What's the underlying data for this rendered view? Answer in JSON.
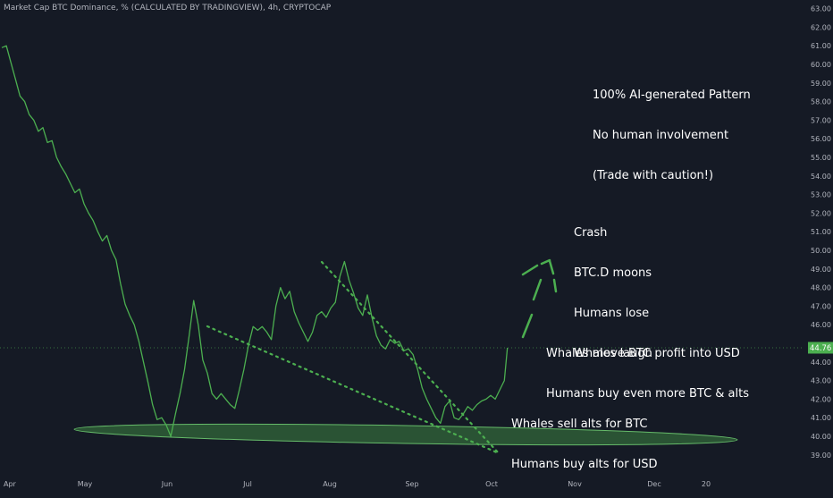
{
  "chart_data": {
    "type": "line",
    "title": "Market Cap BTC Dominance, % (CALCULATED BY TRADINGVIEW), 4h, CRYPTOCAP",
    "ylim": [
      38.5,
      63.2
    ],
    "y_ticks": [
      "39.00",
      "40.00",
      "41.00",
      "42.00",
      "43.00",
      "44.00",
      "45.00",
      "46.00",
      "47.00",
      "48.00",
      "49.00",
      "50.00",
      "51.00",
      "52.00",
      "53.00",
      "54.00",
      "55.00",
      "56.00",
      "57.00",
      "58.00",
      "59.00",
      "60.00",
      "61.00",
      "62.00",
      "63.00"
    ],
    "x_labels": [
      "Apr",
      "May",
      "Jun",
      "Jul",
      "Aug",
      "Sep",
      "Oct",
      "Nov",
      "Dec",
      "20"
    ],
    "last_value_label": "44.76",
    "last_value": 44.76,
    "series": [
      {
        "color": "#4caf50",
        "points": [
          [
            0,
            60.9
          ],
          [
            3,
            61.0
          ],
          [
            6,
            60.1
          ],
          [
            9,
            59.2
          ],
          [
            12,
            58.3
          ],
          [
            15,
            58.0
          ],
          [
            18,
            57.3
          ],
          [
            21,
            57.0
          ],
          [
            24,
            56.4
          ],
          [
            27,
            56.6
          ],
          [
            30,
            55.8
          ],
          [
            33,
            55.9
          ],
          [
            36,
            55.0
          ],
          [
            39,
            54.5
          ],
          [
            42,
            54.1
          ],
          [
            45,
            53.6
          ],
          [
            48,
            53.1
          ],
          [
            51,
            53.3
          ],
          [
            54,
            52.5
          ],
          [
            57,
            52.0
          ],
          [
            60,
            51.6
          ],
          [
            63,
            51.0
          ],
          [
            66,
            50.5
          ],
          [
            69,
            50.8
          ],
          [
            72,
            50.0
          ],
          [
            75,
            49.5
          ],
          [
            78,
            48.2
          ],
          [
            81,
            47.1
          ],
          [
            84,
            46.5
          ],
          [
            87,
            46.0
          ],
          [
            90,
            45.1
          ],
          [
            93,
            44.0
          ],
          [
            96,
            42.9
          ],
          [
            99,
            41.7
          ],
          [
            102,
            40.9
          ],
          [
            105,
            41.0
          ],
          [
            108,
            40.6
          ],
          [
            111,
            40.0
          ],
          [
            114,
            41.2
          ],
          [
            117,
            42.3
          ],
          [
            120,
            43.6
          ],
          [
            123,
            45.4
          ],
          [
            126,
            47.3
          ],
          [
            129,
            46.0
          ],
          [
            132,
            44.1
          ],
          [
            135,
            43.4
          ],
          [
            138,
            42.3
          ],
          [
            141,
            42.0
          ],
          [
            144,
            42.3
          ],
          [
            147,
            42.0
          ],
          [
            150,
            41.7
          ],
          [
            153,
            41.5
          ],
          [
            156,
            42.5
          ],
          [
            159,
            43.6
          ],
          [
            162,
            44.9
          ],
          [
            165,
            45.9
          ],
          [
            168,
            45.7
          ],
          [
            171,
            45.9
          ],
          [
            174,
            45.6
          ],
          [
            177,
            45.2
          ],
          [
            180,
            47.0
          ],
          [
            183,
            48.0
          ],
          [
            186,
            47.4
          ],
          [
            189,
            47.8
          ],
          [
            192,
            46.7
          ],
          [
            195,
            46.1
          ],
          [
            198,
            45.6
          ],
          [
            201,
            45.1
          ],
          [
            204,
            45.6
          ],
          [
            207,
            46.5
          ],
          [
            210,
            46.7
          ],
          [
            213,
            46.4
          ],
          [
            216,
            46.9
          ],
          [
            219,
            47.2
          ],
          [
            222,
            48.6
          ],
          [
            225,
            49.4
          ],
          [
            228,
            48.4
          ],
          [
            231,
            47.7
          ],
          [
            234,
            46.9
          ],
          [
            237,
            46.5
          ],
          [
            240,
            47.6
          ],
          [
            243,
            46.4
          ],
          [
            246,
            45.4
          ],
          [
            249,
            44.9
          ],
          [
            252,
            44.7
          ],
          [
            255,
            45.2
          ],
          [
            258,
            45.0
          ],
          [
            261,
            45.1
          ],
          [
            264,
            44.6
          ],
          [
            267,
            44.7
          ],
          [
            270,
            44.4
          ],
          [
            273,
            43.6
          ],
          [
            276,
            42.6
          ],
          [
            279,
            42.0
          ],
          [
            282,
            41.5
          ],
          [
            285,
            41.0
          ],
          [
            288,
            40.7
          ],
          [
            291,
            41.6
          ],
          [
            294,
            41.9
          ],
          [
            297,
            41.0
          ],
          [
            300,
            40.9
          ],
          [
            303,
            41.2
          ],
          [
            306,
            41.6
          ],
          [
            309,
            41.4
          ],
          [
            312,
            41.7
          ],
          [
            315,
            41.9
          ],
          [
            318,
            42.0
          ],
          [
            321,
            42.2
          ],
          [
            324,
            42.0
          ],
          [
            327,
            42.5
          ],
          [
            330,
            43.0
          ],
          [
            332,
            44.76
          ]
        ]
      }
    ],
    "annotations": {
      "title_note": [
        "100% AI-generated Pattern",
        "No human involvement",
        "(Trade with caution!)"
      ],
      "crash_note": [
        "Crash",
        "BTC.D moons",
        "Humans lose",
        "Whales laugh"
      ],
      "usd_note": [
        "Whales move BTC profit into USD",
        "Humans buy even more BTC & alts"
      ],
      "btc_note": [
        "Whales sell alts for BTC",
        "Humans buy alts for USD"
      ]
    },
    "grid": false,
    "legend": "none"
  }
}
